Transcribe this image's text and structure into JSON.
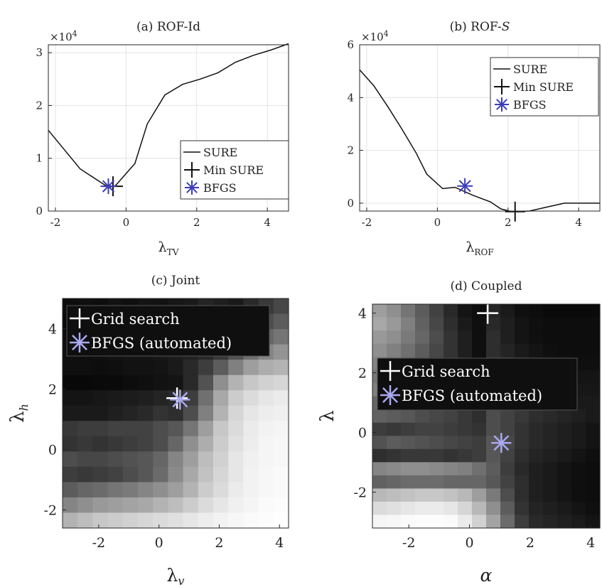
{
  "chart_data": [
    {
      "panel": "a",
      "type": "line",
      "title": "(a) ROF-Id",
      "xlabel_main": "λ",
      "xlabel_sub": "TV",
      "ylabel": "",
      "y_exponent": "×10",
      "y_exponent_power": "4",
      "xlim": [
        -2.2,
        4.6
      ],
      "ylim": [
        0,
        3.15
      ],
      "xticks": [
        -2,
        0,
        2,
        4
      ],
      "yticks": [
        0,
        1,
        2,
        3
      ],
      "grid": true,
      "legend_position": "lower-right",
      "series": [
        {
          "name": "SURE",
          "x": [
            -2.2,
            -1.3,
            -0.5,
            -0.3,
            0.25,
            0.6,
            1.1,
            1.6,
            2.1,
            2.6,
            3.1,
            3.6,
            4.1,
            4.6
          ],
          "y": [
            1.53,
            0.8,
            0.45,
            0.48,
            0.9,
            1.65,
            2.2,
            2.4,
            2.5,
            2.62,
            2.82,
            2.95,
            3.05,
            3.17
          ]
        }
      ],
      "markers": [
        {
          "name": "Min SURE",
          "symbol": "plus",
          "x": -0.37,
          "y": 0.47
        },
        {
          "name": "BFGS",
          "symbol": "asterisk",
          "x": -0.5,
          "y": 0.47
        }
      ]
    },
    {
      "panel": "b",
      "type": "line",
      "title": "(b) ROF-",
      "title_suffix": "S",
      "xlabel_main": "λ",
      "xlabel_sub": "ROF",
      "ylabel": "",
      "y_exponent": "×10",
      "y_exponent_power": "4",
      "xlim": [
        -2.2,
        4.6
      ],
      "ylim": [
        -0.3,
        6.0
      ],
      "xticks": [
        -2,
        0,
        2,
        4
      ],
      "yticks": [
        0,
        2,
        4,
        6
      ],
      "grid": true,
      "legend_position": "top-right",
      "series": [
        {
          "name": "SURE",
          "x": [
            -2.2,
            -1.8,
            -1.4,
            -1.0,
            -0.6,
            -0.3,
            0.15,
            0.5,
            1.0,
            1.5,
            1.8,
            2.1,
            2.6,
            3.1,
            3.6,
            4.1,
            4.6
          ],
          "y": [
            5.05,
            4.45,
            3.65,
            2.8,
            1.9,
            1.1,
            0.55,
            0.6,
            0.3,
            0.05,
            -0.22,
            -0.32,
            -0.3,
            -0.15,
            0.0,
            0.0,
            0.0
          ]
        }
      ],
      "markers": [
        {
          "name": "Min SURE",
          "symbol": "plus",
          "x": 2.2,
          "y": -0.32
        },
        {
          "name": "BFGS",
          "symbol": "asterisk",
          "x": 0.78,
          "y": 0.65
        }
      ]
    },
    {
      "panel": "c",
      "type": "heatmap",
      "title": "(c) Joint",
      "xlabel_main": "λ",
      "xlabel_sub": "v",
      "ylabel_main": "λ",
      "ylabel_sub": "h",
      "xlim": [
        -3.2,
        4.3
      ],
      "ylim": [
        -2.6,
        5.0
      ],
      "xticks": [
        -2,
        0,
        2,
        4
      ],
      "yticks": [
        -2,
        0,
        2,
        4
      ],
      "legend_position": "top-left",
      "markers": [
        {
          "name": "Grid search",
          "symbol": "plus",
          "x": 0.6,
          "y": 1.7
        },
        {
          "name": "BFGS (automated)",
          "symbol": "asterisk",
          "x": 0.7,
          "y": 1.65
        }
      ],
      "values": [
        [
          0.05,
          0.06,
          0.05,
          0.07,
          0.06,
          0.08,
          0.07,
          0.09,
          0.1,
          0.14,
          0.12,
          0.1,
          0.16,
          0.22,
          0.28
        ],
        [
          0.04,
          0.05,
          0.06,
          0.05,
          0.07,
          0.06,
          0.08,
          0.09,
          0.1,
          0.12,
          0.14,
          0.18,
          0.24,
          0.3,
          0.36
        ],
        [
          0.05,
          0.04,
          0.05,
          0.06,
          0.06,
          0.07,
          0.08,
          0.09,
          0.11,
          0.14,
          0.18,
          0.24,
          0.32,
          0.4,
          0.46
        ],
        [
          0.06,
          0.05,
          0.06,
          0.07,
          0.08,
          0.08,
          0.09,
          0.11,
          0.13,
          0.16,
          0.22,
          0.32,
          0.44,
          0.52,
          0.58
        ],
        [
          0.06,
          0.06,
          0.05,
          0.06,
          0.07,
          0.07,
          0.08,
          0.1,
          0.16,
          0.24,
          0.36,
          0.5,
          0.62,
          0.68,
          0.7
        ],
        [
          0.03,
          0.03,
          0.04,
          0.04,
          0.05,
          0.06,
          0.07,
          0.08,
          0.16,
          0.32,
          0.56,
          0.7,
          0.78,
          0.82,
          0.84
        ],
        [
          0.08,
          0.08,
          0.09,
          0.1,
          0.11,
          0.12,
          0.14,
          0.16,
          0.24,
          0.44,
          0.66,
          0.8,
          0.86,
          0.9,
          0.92
        ],
        [
          0.1,
          0.1,
          0.1,
          0.12,
          0.14,
          0.16,
          0.2,
          0.18,
          0.3,
          0.5,
          0.7,
          0.84,
          0.9,
          0.93,
          0.94
        ],
        [
          0.22,
          0.24,
          0.24,
          0.26,
          0.26,
          0.26,
          0.3,
          0.34,
          0.46,
          0.62,
          0.78,
          0.86,
          0.92,
          0.95,
          0.96
        ],
        [
          0.2,
          0.22,
          0.2,
          0.22,
          0.24,
          0.26,
          0.3,
          0.4,
          0.56,
          0.68,
          0.8,
          0.88,
          0.93,
          0.96,
          0.97
        ],
        [
          0.3,
          0.28,
          0.28,
          0.3,
          0.32,
          0.34,
          0.4,
          0.52,
          0.62,
          0.74,
          0.82,
          0.9,
          0.94,
          0.96,
          0.97
        ],
        [
          0.24,
          0.22,
          0.24,
          0.26,
          0.3,
          0.34,
          0.42,
          0.54,
          0.66,
          0.76,
          0.84,
          0.9,
          0.95,
          0.97,
          0.98
        ],
        [
          0.36,
          0.4,
          0.42,
          0.46,
          0.48,
          0.52,
          0.56,
          0.62,
          0.7,
          0.8,
          0.86,
          0.92,
          0.95,
          0.97,
          0.98
        ],
        [
          0.52,
          0.56,
          0.6,
          0.62,
          0.64,
          0.66,
          0.7,
          0.74,
          0.8,
          0.86,
          0.9,
          0.94,
          0.96,
          0.98,
          0.99
        ],
        [
          0.7,
          0.74,
          0.78,
          0.8,
          0.82,
          0.84,
          0.86,
          0.88,
          0.9,
          0.93,
          0.95,
          0.97,
          0.98,
          0.99,
          1.0
        ]
      ]
    },
    {
      "panel": "d",
      "type": "heatmap",
      "title": "(d) Coupled",
      "xlabel_main": "α",
      "ylabel_main": "λ",
      "xlim": [
        -3.2,
        4.3
      ],
      "ylim": [
        -3.2,
        4.3
      ],
      "xticks": [
        -2,
        0,
        2,
        4
      ],
      "yticks": [
        -2,
        0,
        2,
        4
      ],
      "legend_position": "center",
      "markers": [
        {
          "name": "Grid search",
          "symbol": "plus",
          "x": 0.6,
          "y": 4.0
        },
        {
          "name": "BFGS (automated)",
          "symbol": "asterisk",
          "x": 1.05,
          "y": -0.35
        }
      ],
      "values": [
        [
          0.62,
          0.56,
          0.46,
          0.36,
          0.26,
          0.16,
          0.08,
          0.05,
          0.14,
          0.1,
          0.06,
          0.05,
          0.04,
          0.04,
          0.04,
          0.04
        ],
        [
          0.66,
          0.6,
          0.5,
          0.38,
          0.28,
          0.18,
          0.1,
          0.06,
          0.16,
          0.12,
          0.08,
          0.06,
          0.05,
          0.05,
          0.05,
          0.05
        ],
        [
          0.6,
          0.56,
          0.48,
          0.4,
          0.3,
          0.2,
          0.12,
          0.06,
          0.18,
          0.12,
          0.08,
          0.06,
          0.05,
          0.05,
          0.05,
          0.05
        ],
        [
          0.56,
          0.5,
          0.44,
          0.36,
          0.28,
          0.2,
          0.12,
          0.06,
          0.18,
          0.14,
          0.1,
          0.08,
          0.06,
          0.05,
          0.05,
          0.05
        ],
        [
          0.52,
          0.48,
          0.42,
          0.34,
          0.26,
          0.18,
          0.12,
          0.06,
          0.2,
          0.16,
          0.12,
          0.1,
          0.08,
          0.07,
          0.06,
          0.06
        ],
        [
          0.46,
          0.44,
          0.4,
          0.32,
          0.24,
          0.18,
          0.12,
          0.06,
          0.22,
          0.18,
          0.14,
          0.12,
          0.1,
          0.08,
          0.08,
          0.08
        ],
        [
          0.5,
          0.48,
          0.44,
          0.38,
          0.3,
          0.24,
          0.16,
          0.1,
          0.26,
          0.22,
          0.18,
          0.14,
          0.12,
          0.1,
          0.09,
          0.09
        ],
        [
          0.4,
          0.38,
          0.34,
          0.3,
          0.24,
          0.2,
          0.14,
          0.1,
          0.28,
          0.24,
          0.2,
          0.16,
          0.14,
          0.12,
          0.1,
          0.1
        ],
        [
          0.38,
          0.36,
          0.34,
          0.3,
          0.28,
          0.26,
          0.22,
          0.18,
          0.3,
          0.26,
          0.22,
          0.18,
          0.16,
          0.14,
          0.12,
          0.1
        ],
        [
          0.24,
          0.22,
          0.24,
          0.26,
          0.26,
          0.24,
          0.22,
          0.2,
          0.3,
          0.26,
          0.2,
          0.16,
          0.14,
          0.12,
          0.1,
          0.08
        ],
        [
          0.32,
          0.36,
          0.34,
          0.32,
          0.3,
          0.28,
          0.26,
          0.24,
          0.34,
          0.28,
          0.2,
          0.16,
          0.14,
          0.12,
          0.1,
          0.08
        ],
        [
          0.18,
          0.2,
          0.22,
          0.22,
          0.22,
          0.2,
          0.22,
          0.24,
          0.34,
          0.26,
          0.18,
          0.14,
          0.12,
          0.1,
          0.08,
          0.06
        ],
        [
          0.52,
          0.54,
          0.56,
          0.56,
          0.54,
          0.52,
          0.5,
          0.44,
          0.36,
          0.24,
          0.16,
          0.12,
          0.1,
          0.08,
          0.06,
          0.05
        ],
        [
          0.38,
          0.4,
          0.42,
          0.42,
          0.42,
          0.4,
          0.4,
          0.4,
          0.34,
          0.26,
          0.18,
          0.12,
          0.1,
          0.08,
          0.06,
          0.05
        ],
        [
          0.72,
          0.74,
          0.76,
          0.78,
          0.78,
          0.76,
          0.72,
          0.62,
          0.48,
          0.3,
          0.18,
          0.12,
          0.1,
          0.08,
          0.06,
          0.05
        ],
        [
          0.86,
          0.88,
          0.9,
          0.92,
          0.92,
          0.9,
          0.84,
          0.72,
          0.56,
          0.36,
          0.2,
          0.14,
          0.12,
          0.1,
          0.08,
          0.06
        ],
        [
          0.96,
          0.97,
          0.98,
          0.99,
          0.99,
          0.98,
          0.92,
          0.82,
          0.64,
          0.42,
          0.24,
          0.16,
          0.14,
          0.12,
          0.1,
          0.08
        ]
      ]
    }
  ],
  "colors": {
    "line": "#111111",
    "bfgs": "#3c3cb8",
    "bfgs_light": "#a9a9f0",
    "grid": "#e4e4e4",
    "axis": "#262626"
  }
}
